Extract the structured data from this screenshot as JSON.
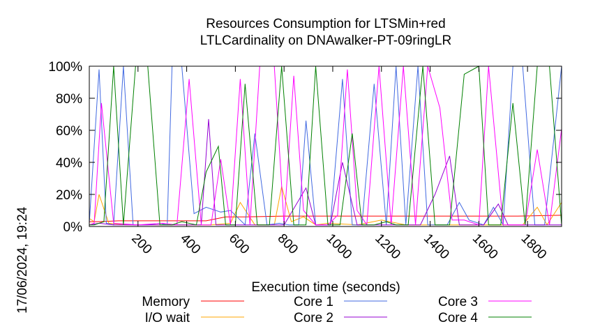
{
  "chart_data": {
    "type": "line",
    "title": "Resources Consumption for LTSMin+red",
    "subtitle": "LTLCardinality on DNAwalker-PT-09ringLR",
    "xlabel": "Execution time (seconds)",
    "ylabel": "",
    "xlim": [
      0,
      1940
    ],
    "ylim": [
      0,
      100
    ],
    "x_ticks": [
      200,
      400,
      600,
      800,
      1000,
      1200,
      1400,
      1600,
      1800
    ],
    "y_ticks": [
      0,
      20,
      40,
      60,
      80,
      100
    ],
    "y_tick_labels": [
      "0%",
      "20%",
      "40%",
      "60%",
      "80%",
      "100%"
    ],
    "grid": false,
    "legend_position": "bottom",
    "timestamp": "17/06/2024, 19:24",
    "series": [
      {
        "name": "Memory",
        "color": "#ff0000",
        "x": [
          0,
          40,
          120,
          240,
          360,
          480,
          560,
          640,
          800,
          960,
          1120,
          1280,
          1440,
          1600,
          1760,
          1940
        ],
        "values": [
          3,
          3,
          3.5,
          3.5,
          3.5,
          3.5,
          6,
          6,
          6.5,
          6.5,
          6.5,
          6.5,
          6.5,
          6.5,
          6.5,
          7
        ]
      },
      {
        "name": "I/O wait",
        "color": "#ffa500",
        "x": [
          0,
          20,
          40,
          80,
          150,
          300,
          420,
          500,
          580,
          620,
          680,
          760,
          790,
          830,
          880,
          930,
          980,
          1100,
          1200,
          1300,
          1400,
          1500,
          1600,
          1700,
          1780,
          1840,
          1880,
          1940
        ],
        "values": [
          5,
          3,
          20,
          2,
          1,
          1,
          1,
          1,
          2,
          15,
          1,
          1,
          25,
          3,
          6,
          1,
          2,
          1,
          4,
          1,
          1,
          1,
          1,
          1,
          1,
          12,
          1,
          15
        ]
      },
      {
        "name": "Core 1",
        "color": "#4169e1",
        "x": [
          0,
          40,
          70,
          100,
          140,
          180,
          240,
          290,
          320,
          340,
          380,
          430,
          480,
          540,
          580,
          640,
          680,
          730,
          780,
          820,
          860,
          890,
          930,
          990,
          1040,
          1080,
          1120,
          1170,
          1220,
          1260,
          1300,
          1350,
          1390,
          1430,
          1470,
          1520,
          1560,
          1620,
          1660,
          1700,
          1740,
          1780,
          1830,
          1870,
          1940
        ],
        "values": [
          2,
          98,
          2,
          1,
          100,
          1,
          1,
          2,
          1,
          100,
          100,
          8,
          12,
          9,
          10,
          1,
          58,
          1,
          2,
          1,
          1,
          66,
          1,
          1,
          92,
          1,
          1,
          89,
          1,
          100,
          1,
          100,
          1,
          1,
          1,
          15,
          4,
          1,
          12,
          1,
          100,
          100,
          1,
          1,
          100
        ]
      },
      {
        "name": "Core 2",
        "color": "#9400d3",
        "x": [
          0,
          40,
          100,
          200,
          300,
          380,
          420,
          460,
          490,
          520,
          560,
          620,
          680,
          760,
          800,
          890,
          930,
          990,
          1040,
          1100,
          1160,
          1220,
          1300,
          1360,
          1420,
          1480,
          1520,
          1580,
          1620,
          1680,
          1720,
          1800,
          1880,
          1940
        ],
        "values": [
          1,
          2,
          1,
          1,
          1,
          1,
          1,
          1,
          67,
          1,
          1,
          1,
          1,
          1,
          1,
          24,
          1,
          1,
          40,
          1,
          1,
          1,
          1,
          1,
          20,
          44,
          1,
          1,
          1,
          14,
          1,
          1,
          1,
          1
        ]
      },
      {
        "name": "Core 3",
        "color": "#ff00ff",
        "x": [
          0,
          20,
          50,
          100,
          200,
          300,
          360,
          410,
          460,
          500,
          540,
          580,
          620,
          660,
          700,
          760,
          800,
          840,
          880,
          930,
          980,
          1020,
          1060,
          1100,
          1140,
          1190,
          1240,
          1290,
          1340,
          1390,
          1440,
          1490,
          1540,
          1600,
          1640,
          1700,
          1740,
          1790,
          1840,
          1890,
          1940
        ],
        "values": [
          1,
          2,
          77,
          2,
          1,
          2,
          1,
          92,
          1,
          1,
          42,
          1,
          92,
          1,
          100,
          100,
          1,
          94,
          10,
          1,
          1,
          7,
          98,
          10,
          1,
          100,
          1,
          100,
          1,
          100,
          74,
          4,
          4,
          1,
          100,
          1,
          1,
          1,
          48,
          1,
          61
        ]
      },
      {
        "name": "Core 4",
        "color": "#008000",
        "x": [
          0,
          20,
          60,
          100,
          140,
          190,
          240,
          290,
          340,
          380,
          440,
          480,
          530,
          560,
          600,
          640,
          690,
          740,
          790,
          840,
          890,
          930,
          980,
          1030,
          1080,
          1120,
          1170,
          1220,
          1260,
          1310,
          1370,
          1420,
          1480,
          1540,
          1600,
          1640,
          1690,
          1740,
          1790,
          1840,
          1890,
          1940
        ],
        "values": [
          1,
          1,
          3,
          100,
          1,
          100,
          100,
          1,
          1,
          3,
          1,
          34,
          50,
          1,
          1,
          89,
          1,
          1,
          100,
          1,
          1,
          100,
          1,
          1,
          58,
          1,
          1,
          3,
          1,
          1,
          100,
          1,
          1,
          95,
          100,
          1,
          1,
          77,
          1,
          100,
          100,
          1
        ]
      }
    ]
  }
}
